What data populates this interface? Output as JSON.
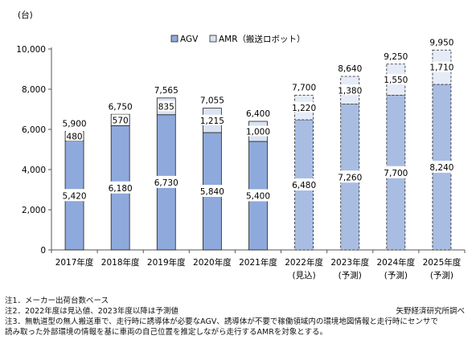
{
  "chart_data": {
    "type": "bar",
    "stacked": true,
    "y_unit_label": "(台)",
    "ylim": [
      0,
      10000
    ],
    "y_ticks": [
      0,
      2000,
      4000,
      6000,
      8000,
      10000
    ],
    "y_tick_labels": [
      "0",
      "2,000",
      "4,000",
      "6,000",
      "8,000",
      "10,000"
    ],
    "categories": [
      "2017年度",
      "2018年度",
      "2019年度",
      "2020年度",
      "2021年度",
      "2022年度",
      "2023年度",
      "2024年度",
      "2025年度"
    ],
    "category_sublabels": [
      "",
      "",
      "",
      "",
      "",
      "(見込)",
      "(予測)",
      "(予測)",
      "(予測)"
    ],
    "estimate_from_index": 5,
    "series": [
      {
        "name": "AGV",
        "values": [
          5420,
          6180,
          6730,
          5840,
          5400,
          6480,
          7260,
          7700,
          8240
        ],
        "labels": [
          "5,420",
          "6,180",
          "6,730",
          "5,840",
          "5,400",
          "6,480",
          "7,260",
          "7,700",
          "8,240"
        ]
      },
      {
        "name": "AMR（搬送ロボット）",
        "values": [
          480,
          570,
          835,
          1215,
          1000,
          1220,
          1380,
          1550,
          1710
        ],
        "labels": [
          "480",
          "570",
          "835",
          "1,215",
          "1,000",
          "1,220",
          "1,380",
          "1,550",
          "1,710"
        ]
      }
    ],
    "totals": [
      5900,
      6750,
      7565,
      7055,
      6400,
      7700,
      8640,
      9250,
      9950
    ],
    "total_labels": [
      "5,900",
      "6,750",
      "7,565",
      "7,055",
      "6,400",
      "7,700",
      "8,640",
      "9,250",
      "9,950"
    ],
    "legend_position": "top-center",
    "grid": false,
    "colors": {
      "agv": "#8ea9db",
      "amr": "#dae3f3",
      "agv_estimate": "#a9bde3",
      "amr_estimate": "#e6ecf7",
      "outline": "#222222"
    }
  },
  "notes": {
    "note1": "注1．メーカー出荷台数ベース",
    "note2": "注2．2022年度は見込値、2023年度以降は予測値",
    "note3_line1": "注3．無軌道型の無人搬送車で、走行時に誘導体が必要なAGV、誘導体が不要で稼働領域内の環境地図情報と走行時にセンサで",
    "note3_line2": "読み取った外部環境の情報を基に車両の自己位置を推定しながら走行するAMRを対象とする。",
    "source": "矢野経済研究所調べ"
  }
}
